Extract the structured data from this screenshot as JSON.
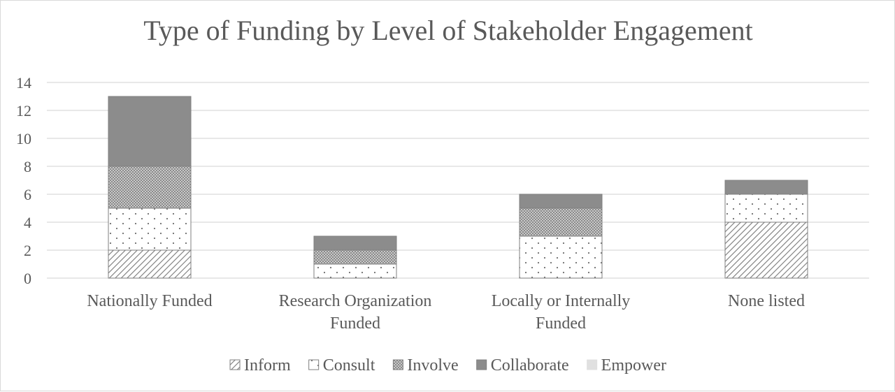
{
  "chart_data": {
    "type": "bar",
    "stacked": true,
    "title": "Type of Funding by Level of Stakeholder Engagement",
    "xlabel": "",
    "ylabel": "",
    "ylim": [
      0,
      14
    ],
    "yticks": [
      "0",
      "2",
      "4",
      "6",
      "8",
      "10",
      "12",
      "14"
    ],
    "grid": true,
    "legend_position": "bottom",
    "categories": [
      [
        "Nationally Funded"
      ],
      [
        "Research Organization",
        "Funded"
      ],
      [
        "Locally or Internally",
        "Funded"
      ],
      [
        "None listed"
      ]
    ],
    "series": [
      {
        "name": "Inform",
        "pattern": "diagonal-hatch",
        "color": "#7f7f7f",
        "values": [
          2,
          0,
          0,
          4
        ]
      },
      {
        "name": "Consult",
        "pattern": "dots",
        "color": "#7f7f7f",
        "values": [
          3,
          1,
          3,
          2
        ]
      },
      {
        "name": "Involve",
        "pattern": "crosshatch",
        "color": "#7f7f7f",
        "values": [
          3,
          1,
          2,
          0
        ]
      },
      {
        "name": "Collaborate",
        "pattern": "solid",
        "color": "#8c8c8c",
        "values": [
          5,
          1,
          1,
          1
        ]
      },
      {
        "name": "Empower",
        "pattern": "solid-light",
        "color": "#e0e0e0",
        "values": [
          0,
          0,
          0,
          0
        ]
      }
    ]
  }
}
